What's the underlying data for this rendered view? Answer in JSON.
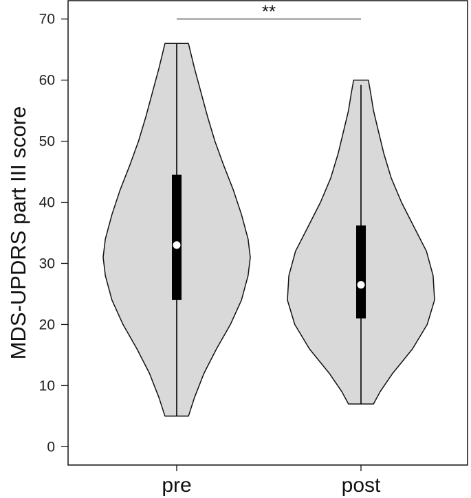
{
  "chart_data": {
    "type": "violin",
    "title": "",
    "xlabel": "",
    "ylabel": "MDS-UPDRS part III score",
    "ylim": [
      -3,
      73
    ],
    "yticks": [
      0,
      10,
      20,
      30,
      40,
      50,
      60,
      70
    ],
    "grid": false,
    "categories": [
      "pre",
      "post"
    ],
    "groups": [
      {
        "category": "pre",
        "min": 5,
        "max": 66,
        "q1": 24,
        "median": 33,
        "q3": 44.5,
        "whisker_low": 5,
        "whisker_high": 66,
        "density": [
          [
            5,
            0.16
          ],
          [
            8,
            0.24
          ],
          [
            12,
            0.37
          ],
          [
            16,
            0.54
          ],
          [
            20,
            0.73
          ],
          [
            24,
            0.88
          ],
          [
            28,
            0.97
          ],
          [
            31,
            1.0
          ],
          [
            34,
            0.97
          ],
          [
            38,
            0.88
          ],
          [
            42,
            0.77
          ],
          [
            46,
            0.64
          ],
          [
            50,
            0.52
          ],
          [
            54,
            0.42
          ],
          [
            58,
            0.33
          ],
          [
            62,
            0.24
          ],
          [
            66,
            0.16
          ]
        ]
      },
      {
        "category": "post",
        "min": 7,
        "max": 60,
        "q1": 21,
        "median": 26.5,
        "q3": 36.2,
        "whisker_low": 7,
        "whisker_high": 59.2,
        "density": [
          [
            7,
            0.17
          ],
          [
            9,
            0.26
          ],
          [
            12,
            0.43
          ],
          [
            16,
            0.7
          ],
          [
            20,
            0.9
          ],
          [
            24,
            1.0
          ],
          [
            28,
            0.98
          ],
          [
            32,
            0.89
          ],
          [
            36,
            0.72
          ],
          [
            40,
            0.55
          ],
          [
            44,
            0.41
          ],
          [
            48,
            0.31
          ],
          [
            52,
            0.23
          ],
          [
            55,
            0.17
          ],
          [
            58,
            0.13
          ],
          [
            60,
            0.1
          ]
        ]
      }
    ],
    "significance": {
      "label": "**",
      "y": 70
    },
    "colors": {
      "violin_fill": "#d9d9d9",
      "violin_stroke": "#111111",
      "box": "#000000",
      "median_dot": "#ffffff"
    }
  }
}
